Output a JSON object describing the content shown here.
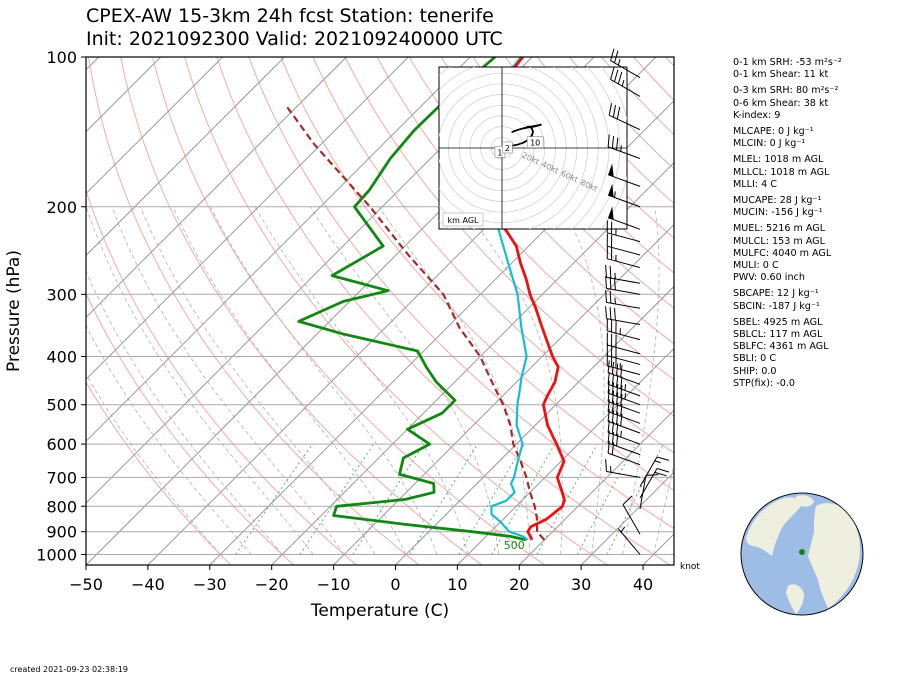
{
  "title": {
    "line1": "CPEX-AW 15-3km  24h fcst  Station: tenerife",
    "line2": "Init: 2021092300  Valid: 202109240000 UTC"
  },
  "footer": {
    "created": "created 2021-09-23 02:38:19"
  },
  "indices": [
    {
      "label": "0-1 km SRH:",
      "value": "-53",
      "unit": "m²s⁻²"
    },
    {
      "label": "0-1 km Shear:",
      "value": "11",
      "unit": "kt"
    },
    {
      "label": "0-3 km SRH:",
      "value": "80",
      "unit": "m²s⁻²"
    },
    {
      "label": "0-6 km Shear:",
      "value": "38",
      "unit": "kt"
    },
    {
      "label": "K-index:",
      "value": "9",
      "unit": ""
    },
    {
      "label": "MLCAPE:",
      "value": "0",
      "unit": "J kg⁻¹"
    },
    {
      "label": "MLCIN:",
      "value": "0",
      "unit": "J kg⁻¹"
    },
    {
      "label": "MLEL:",
      "value": "1018",
      "unit": "m AGL"
    },
    {
      "label": "MLLCL:",
      "value": "1018",
      "unit": "m AGL"
    },
    {
      "label": "MLLI:",
      "value": "4",
      "unit": "C"
    },
    {
      "label": "MUCAPE:",
      "value": "28",
      "unit": "J kg⁻¹"
    },
    {
      "label": "MUCIN:",
      "value": "-156",
      "unit": "J kg⁻¹"
    },
    {
      "label": "MUEL:",
      "value": "5216",
      "unit": "m AGL"
    },
    {
      "label": "MULCL:",
      "value": "153",
      "unit": "m AGL"
    },
    {
      "label": "MULFC:",
      "value": "4040",
      "unit": "m AGL"
    },
    {
      "label": "MULI:",
      "value": "0",
      "unit": "C"
    },
    {
      "label": "PWV:",
      "value": "0.60",
      "unit": "inch"
    },
    {
      "label": "SBCAPE:",
      "value": "12",
      "unit": "J kg⁻¹"
    },
    {
      "label": "SBCIN:",
      "value": "-187",
      "unit": "J kg⁻¹"
    },
    {
      "label": "SBEL:",
      "value": "4925",
      "unit": "m AGL"
    },
    {
      "label": "SBLCL:",
      "value": "117",
      "unit": "m AGL"
    },
    {
      "label": "SBLFC:",
      "value": "4361",
      "unit": "m AGL"
    },
    {
      "label": "SBLI:",
      "value": "0",
      "unit": "C"
    },
    {
      "label": "SHIP:",
      "value": "0.0",
      "unit": ""
    },
    {
      "label": "STP(fix):",
      "value": "-0.0",
      "unit": ""
    }
  ],
  "chart_data": {
    "type": "skew-t",
    "xlabel": "Temperature (C)",
    "ylabel": "Pressure (hPa)",
    "xlim": [
      -50,
      45
    ],
    "ylim": [
      1050,
      100
    ],
    "xticks": [
      -50,
      -40,
      -30,
      -20,
      -10,
      0,
      10,
      20,
      30,
      40
    ],
    "yticks": [
      100,
      200,
      300,
      400,
      500,
      600,
      700,
      800,
      900,
      1000
    ],
    "y_scale": "log",
    "skew": "45 degrees",
    "colors": {
      "temperature": "#ee1111",
      "virtual_temperature": "#17becf",
      "dewpoint": "#118811",
      "parcel": "#a52a2a",
      "dry_adiabats": "#f4aaaa",
      "moist_adiabats": "#b0b0b0",
      "mixing_ratio": "#55bb55",
      "isotherms": "#999999",
      "isobars": "#aaaaaa"
    },
    "temperature": [
      {
        "p": 935,
        "t": 18.0
      },
      {
        "p": 920,
        "t": 17.2
      },
      {
        "p": 900,
        "t": 16.0
      },
      {
        "p": 880,
        "t": 15.7
      },
      {
        "p": 850,
        "t": 17.0
      },
      {
        "p": 800,
        "t": 17.5
      },
      {
        "p": 775,
        "t": 16.7
      },
      {
        "p": 750,
        "t": 15.2
      },
      {
        "p": 700,
        "t": 12.0
      },
      {
        "p": 650,
        "t": 10.5
      },
      {
        "p": 600,
        "t": 6.5
      },
      {
        "p": 550,
        "t": 2.0
      },
      {
        "p": 500,
        "t": -2.0
      },
      {
        "p": 480,
        "t": -2.8
      },
      {
        "p": 450,
        "t": -3.8
      },
      {
        "p": 420,
        "t": -5.7
      },
      {
        "p": 400,
        "t": -8.3
      },
      {
        "p": 370,
        "t": -12.0
      },
      {
        "p": 340,
        "t": -16.0
      },
      {
        "p": 320,
        "t": -18.8
      },
      {
        "p": 300,
        "t": -22.0
      },
      {
        "p": 280,
        "t": -25.0
      },
      {
        "p": 260,
        "t": -28.5
      },
      {
        "p": 240,
        "t": -32.0
      },
      {
        "p": 220,
        "t": -37.0
      },
      {
        "p": 200,
        "t": -41.5
      },
      {
        "p": 180,
        "t": -45.5
      },
      {
        "p": 160,
        "t": -50.0
      },
      {
        "p": 140,
        "t": -55.0
      },
      {
        "p": 120,
        "t": -59.5
      },
      {
        "p": 110,
        "t": -60.8
      },
      {
        "p": 100,
        "t": -61.5
      }
    ],
    "virtual_temperature": [
      {
        "p": 935,
        "t": 17.3
      },
      {
        "p": 920,
        "t": 16.0
      },
      {
        "p": 900,
        "t": 13.0
      },
      {
        "p": 860,
        "t": 10.0
      },
      {
        "p": 830,
        "t": 7.3
      },
      {
        "p": 800,
        "t": 6.0
      },
      {
        "p": 780,
        "t": 7.5
      },
      {
        "p": 750,
        "t": 7.5
      },
      {
        "p": 720,
        "t": 5.5
      },
      {
        "p": 700,
        "t": 5.0
      },
      {
        "p": 650,
        "t": 3.0
      },
      {
        "p": 600,
        "t": 1.0
      },
      {
        "p": 550,
        "t": -3.0
      },
      {
        "p": 500,
        "t": -6.2
      },
      {
        "p": 470,
        "t": -8.0
      },
      {
        "p": 440,
        "t": -10.0
      },
      {
        "p": 400,
        "t": -12.5
      },
      {
        "p": 350,
        "t": -18.0
      },
      {
        "p": 300,
        "t": -24.0
      },
      {
        "p": 260,
        "t": -30.5
      },
      {
        "p": 220,
        "t": -38.0
      },
      {
        "p": 200,
        "t": -42.0
      },
      {
        "p": 180,
        "t": -46.0
      },
      {
        "p": 160,
        "t": -50.5
      },
      {
        "p": 140,
        "t": -55.5
      },
      {
        "p": 120,
        "t": -59.8
      },
      {
        "p": 110,
        "t": -61.2
      },
      {
        "p": 100,
        "t": -61.8
      }
    ],
    "dewpoint": [
      {
        "p": 935,
        "t": 17.0
      },
      {
        "p": 920,
        "t": 14.0
      },
      {
        "p": 900,
        "t": 7.0
      },
      {
        "p": 870,
        "t": -5.0
      },
      {
        "p": 835,
        "t": -18.0
      },
      {
        "p": 800,
        "t": -19.0
      },
      {
        "p": 775,
        "t": -9.0
      },
      {
        "p": 750,
        "t": -5.5
      },
      {
        "p": 720,
        "t": -7.0
      },
      {
        "p": 690,
        "t": -14.0
      },
      {
        "p": 640,
        "t": -16.0
      },
      {
        "p": 600,
        "t": -14.0
      },
      {
        "p": 560,
        "t": -20.0
      },
      {
        "p": 520,
        "t": -17.0
      },
      {
        "p": 490,
        "t": -17.0
      },
      {
        "p": 450,
        "t": -23.0
      },
      {
        "p": 420,
        "t": -27.0
      },
      {
        "p": 390,
        "t": -31.0
      },
      {
        "p": 360,
        "t": -46.0
      },
      {
        "p": 340,
        "t": -55.0
      },
      {
        "p": 310,
        "t": -51.0
      },
      {
        "p": 295,
        "t": -45.5
      },
      {
        "p": 275,
        "t": -57.0
      },
      {
        "p": 240,
        "t": -53.5
      },
      {
        "p": 200,
        "t": -64.5
      },
      {
        "p": 185,
        "t": -64.8
      },
      {
        "p": 160,
        "t": -66.5
      },
      {
        "p": 140,
        "t": -67.2
      },
      {
        "p": 120,
        "t": -67.0
      },
      {
        "p": 100,
        "t": -66.0
      }
    ],
    "parcel": [
      {
        "p": 935,
        "t": 20.0
      },
      {
        "p": 900,
        "t": 17.5
      },
      {
        "p": 850,
        "t": 15.5
      },
      {
        "p": 800,
        "t": 13.0
      },
      {
        "p": 750,
        "t": 10.0
      },
      {
        "p": 700,
        "t": 7.0
      },
      {
        "p": 650,
        "t": 3.5
      },
      {
        "p": 600,
        "t": -0.5
      },
      {
        "p": 550,
        "t": -4.0
      },
      {
        "p": 500,
        "t": -8.5
      },
      {
        "p": 450,
        "t": -14.0
      },
      {
        "p": 400,
        "t": -20.0
      },
      {
        "p": 350,
        "t": -28.0
      },
      {
        "p": 300,
        "t": -36.0
      },
      {
        "p": 250,
        "t": -48.0
      },
      {
        "p": 200,
        "t": -62.0
      },
      {
        "p": 150,
        "t": -81.0
      },
      {
        "p": 125,
        "t": -92.0
      }
    ],
    "height_label": {
      "p": 958,
      "t": 16,
      "text": "500"
    },
    "wind_barbs_unit": "knot",
    "wind_barbs": [
      {
        "p": 1000,
        "speed": 5,
        "dir": 320
      },
      {
        "p": 910,
        "speed": 10,
        "dir": 330
      },
      {
        "p": 810,
        "speed": 10,
        "dir": 10
      },
      {
        "p": 770,
        "speed": 20,
        "dir": 30
      },
      {
        "p": 730,
        "speed": 15,
        "dir": 30
      },
      {
        "p": 700,
        "speed": 15,
        "dir": 280
      },
      {
        "p": 660,
        "speed": 20,
        "dir": 290
      },
      {
        "p": 630,
        "speed": 30,
        "dir": 290
      },
      {
        "p": 600,
        "speed": 35,
        "dir": 290
      },
      {
        "p": 570,
        "speed": 40,
        "dir": 290
      },
      {
        "p": 545,
        "speed": 40,
        "dir": 290
      },
      {
        "p": 520,
        "speed": 40,
        "dir": 290
      },
      {
        "p": 500,
        "speed": 45,
        "dir": 290
      },
      {
        "p": 480,
        "speed": 45,
        "dir": 290
      },
      {
        "p": 455,
        "speed": 40,
        "dir": 290
      },
      {
        "p": 435,
        "speed": 35,
        "dir": 285
      },
      {
        "p": 415,
        "speed": 30,
        "dir": 285
      },
      {
        "p": 395,
        "speed": 30,
        "dir": 285
      },
      {
        "p": 370,
        "speed": 35,
        "dir": 285
      },
      {
        "p": 345,
        "speed": 30,
        "dir": 280
      },
      {
        "p": 320,
        "speed": 25,
        "dir": 280
      },
      {
        "p": 300,
        "speed": 30,
        "dir": 280
      },
      {
        "p": 285,
        "speed": 25,
        "dir": 280
      },
      {
        "p": 265,
        "speed": 25,
        "dir": 285
      },
      {
        "p": 250,
        "speed": 20,
        "dir": 285
      },
      {
        "p": 235,
        "speed": 25,
        "dir": 285
      },
      {
        "p": 222,
        "speed": 50,
        "dir": 290
      },
      {
        "p": 200,
        "speed": 55,
        "dir": 290
      },
      {
        "p": 182,
        "speed": 50,
        "dir": 290
      },
      {
        "p": 160,
        "speed": 35,
        "dir": 290
      },
      {
        "p": 140,
        "speed": 30,
        "dir": 295
      },
      {
        "p": 120,
        "speed": 35,
        "dir": 300
      },
      {
        "p": 110,
        "speed": 25,
        "dir": 300
      }
    ],
    "hodograph": {
      "label": "km AGL",
      "ring_labels": [
        "20kt",
        "40kt",
        "60kt",
        "80kt"
      ],
      "height_labels": [
        "1",
        "2",
        "10"
      ],
      "u_kt": [
        -1,
        2,
        5,
        3,
        8,
        14,
        20,
        25,
        28,
        29,
        28,
        26,
        24,
        23,
        27,
        33,
        37,
        30,
        22,
        15,
        12,
        10,
        9
      ],
      "v_kt": [
        -3,
        -1,
        0,
        -4,
        2,
        3,
        5,
        8,
        12,
        15,
        18,
        20,
        20,
        19,
        20,
        21,
        22,
        20,
        19,
        17,
        16,
        15,
        15
      ],
      "label_points": [
        {
          "text": "1",
          "u": -2,
          "v": -4
        },
        {
          "text": "2",
          "u": 5,
          "v": 0
        },
        {
          "text": "10",
          "u": 31,
          "v": 5
        }
      ]
    },
    "locator_map": {
      "station_lat": 28.3,
      "station_lon": -16.6
    }
  }
}
